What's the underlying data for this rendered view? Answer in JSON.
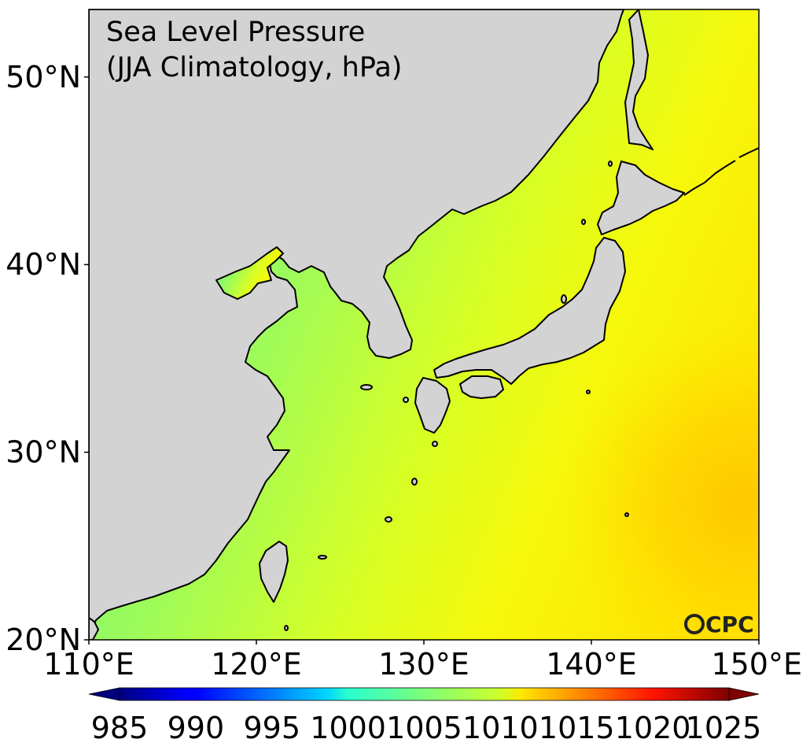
{
  "map": {
    "title_line1": "Sea Level Pressure",
    "title_line2": "(JJA Climatology, hPa)",
    "logo": "CPC",
    "land_color": "#d3d3d3",
    "extent": {
      "lon": [
        110,
        150
      ],
      "lat": [
        20,
        53.6
      ]
    },
    "lat_ticks": [
      {
        "value": 20,
        "label": "20°N"
      },
      {
        "value": 30,
        "label": "30°N"
      },
      {
        "value": 40,
        "label": "40°N"
      },
      {
        "value": 50,
        "label": "50°N"
      }
    ],
    "lon_ticks": [
      {
        "value": 110,
        "label": "110°E"
      },
      {
        "value": 120,
        "label": "120°E"
      },
      {
        "value": 130,
        "label": "130°E"
      },
      {
        "value": 140,
        "label": "140°E"
      },
      {
        "value": 150,
        "label": "150°E"
      }
    ]
  },
  "colorbar": {
    "min": 985,
    "max": 1025,
    "extend": "both",
    "colormap": "jet",
    "ticks": [
      {
        "value": 985,
        "label": "985"
      },
      {
        "value": 990,
        "label": "990"
      },
      {
        "value": 995,
        "label": "995"
      },
      {
        "value": 1000,
        "label": "1000"
      },
      {
        "value": 1005,
        "label": "1005"
      },
      {
        "value": 1010,
        "label": "1010"
      },
      {
        "value": 1015,
        "label": "1015"
      },
      {
        "value": 1020,
        "label": "1020"
      },
      {
        "value": 1025,
        "label": "1025"
      }
    ]
  },
  "field_colors": {
    "low_west": "#6ff58a",
    "mid": "#c8ff2a",
    "high_east": "#ffd400"
  }
}
